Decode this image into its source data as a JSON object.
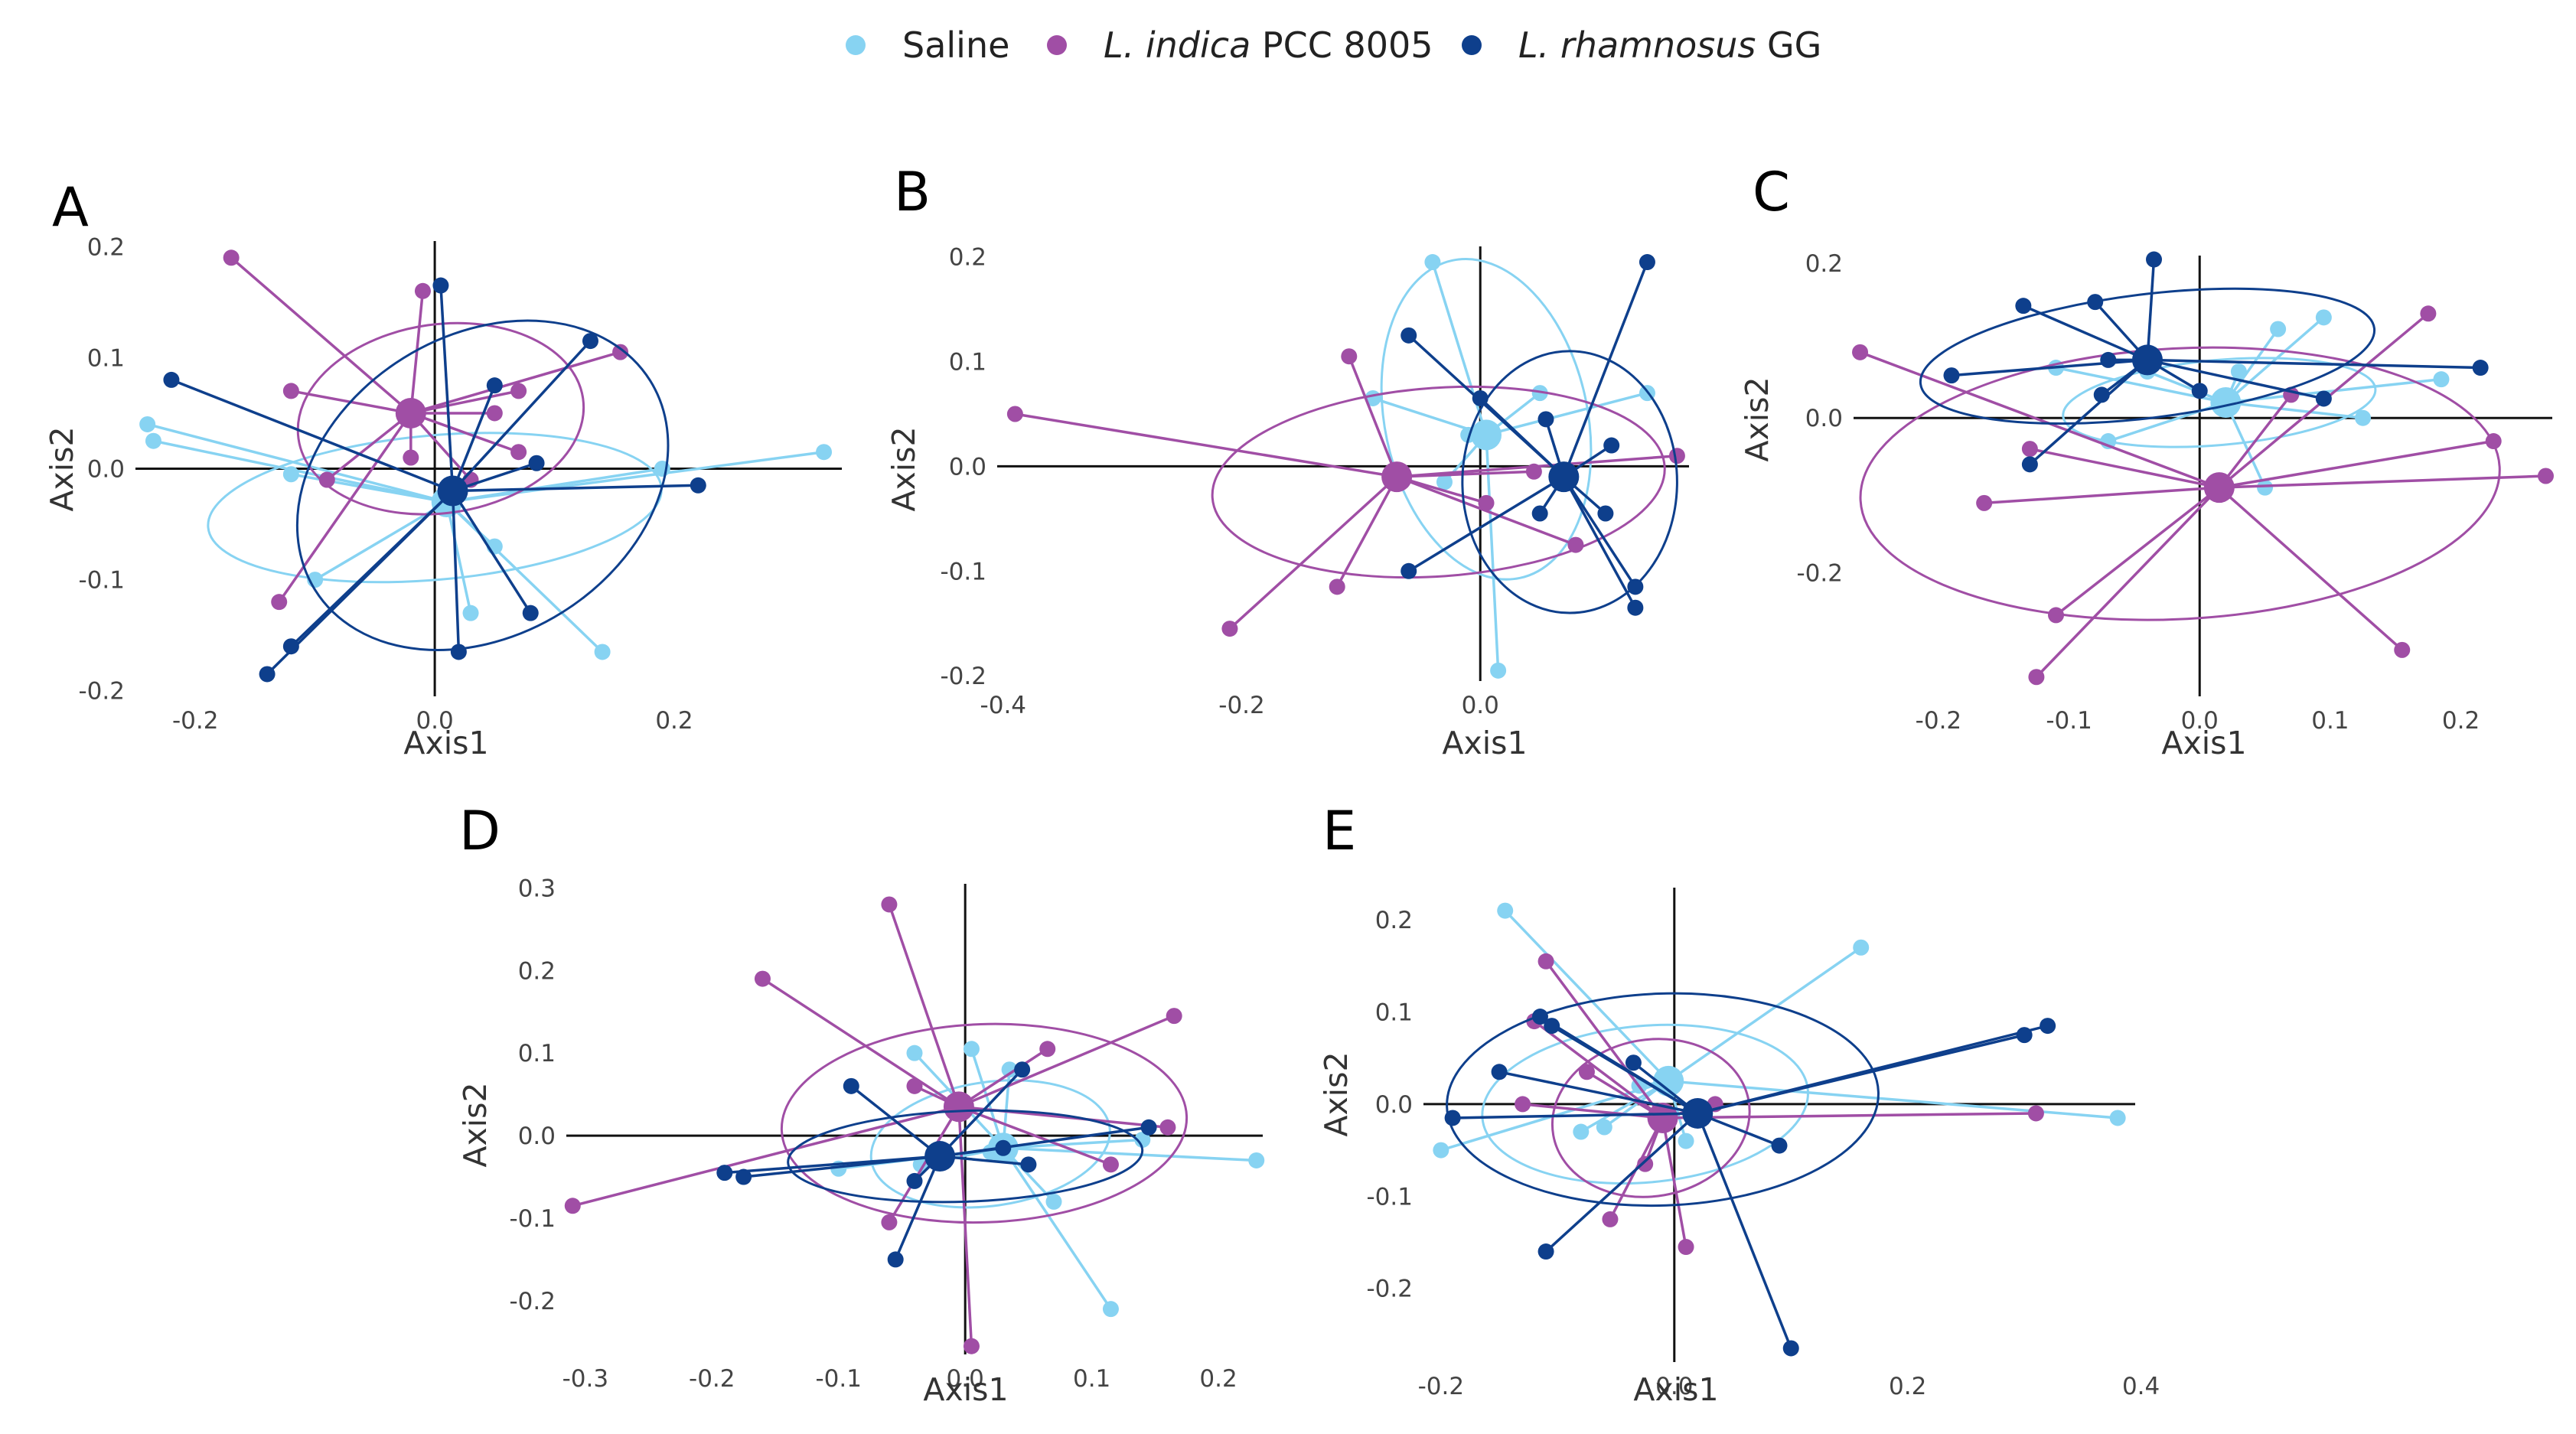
{
  "legend": {
    "items": [
      {
        "name": "Saline",
        "italic": "",
        "plain": "Saline",
        "color": "#87d3f2"
      },
      {
        "name": "L. indica PCC 8005",
        "italic": "L. indica",
        "plain": " PCC 8005",
        "color": "#a04ea5"
      },
      {
        "name": "L. rhamnosus GG",
        "italic": "L. rhamnosus",
        "plain": " GG",
        "color": "#0e3f8c"
      }
    ]
  },
  "chart_data": [
    {
      "panel": "A",
      "type": "scatter",
      "xlabel": "Axis1",
      "ylabel": "Axis2",
      "xlim": [
        -0.25,
        0.34
      ],
      "ylim": [
        -0.205,
        0.205
      ],
      "xticks": [
        "-0.2",
        "0.0",
        "0.2"
      ],
      "xtick_values": [
        -0.2,
        0.0,
        0.2
      ],
      "yticks": [
        "0.2",
        "0.1",
        "0.0",
        "-0.1",
        "-0.2"
      ],
      "ytick_values": [
        0.2,
        0.1,
        0.0,
        -0.1,
        -0.2
      ],
      "groups": [
        {
          "name": "Saline",
          "color": "#87d3f2",
          "centroid": [
            0.01,
            -0.03
          ],
          "ellipse": {
            "cx": 0.0,
            "cy": -0.035,
            "rx": 0.19,
            "ry": 0.065,
            "angle": -5
          },
          "points": [
            [
              -0.24,
              0.04
            ],
            [
              -0.235,
              0.025
            ],
            [
              -0.1,
              -0.1
            ],
            [
              -0.12,
              -0.005
            ],
            [
              0.05,
              -0.07
            ],
            [
              0.03,
              -0.13
            ],
            [
              0.14,
              -0.165
            ],
            [
              0.19,
              0.0
            ],
            [
              0.325,
              0.015
            ],
            [
              0.01,
              -0.025
            ]
          ]
        },
        {
          "name": "L. indica PCC 8005",
          "color": "#a04ea5",
          "centroid": [
            -0.02,
            0.05
          ],
          "ellipse": {
            "cx": 0.005,
            "cy": 0.045,
            "rx": 0.12,
            "ry": 0.085,
            "angle": -8
          },
          "points": [
            [
              -0.17,
              0.19
            ],
            [
              -0.12,
              0.07
            ],
            [
              -0.09,
              -0.01
            ],
            [
              -0.13,
              -0.12
            ],
            [
              -0.01,
              0.16
            ],
            [
              -0.02,
              0.01
            ],
            [
              0.05,
              0.05
            ],
            [
              0.07,
              0.07
            ],
            [
              0.155,
              0.105
            ],
            [
              0.07,
              0.015
            ],
            [
              0.03,
              -0.01
            ]
          ]
        },
        {
          "name": "L. rhamnosus GG",
          "color": "#0e3f8c",
          "centroid": [
            0.015,
            -0.02
          ],
          "ellipse": {
            "cx": 0.04,
            "cy": -0.015,
            "rx": 0.165,
            "ry": 0.135,
            "angle": -32
          },
          "points": [
            [
              -0.22,
              0.08
            ],
            [
              0.005,
              0.165
            ],
            [
              0.13,
              0.115
            ],
            [
              0.22,
              -0.015
            ],
            [
              0.085,
              0.005
            ],
            [
              0.08,
              -0.13
            ],
            [
              0.02,
              -0.165
            ],
            [
              -0.12,
              -0.16
            ],
            [
              -0.14,
              -0.185
            ],
            [
              0.05,
              0.075
            ]
          ]
        }
      ]
    },
    {
      "panel": "B",
      "type": "scatter",
      "xlabel": "Axis1",
      "ylabel": "Axis2",
      "xlim": [
        -0.405,
        0.175
      ],
      "ylim": [
        -0.205,
        0.21
      ],
      "xticks": [
        "-0.4",
        "-0.2",
        "0.0"
      ],
      "xtick_values": [
        -0.4,
        -0.2,
        0.0
      ],
      "yticks": [
        "0.2",
        "0.1",
        "0.0",
        "-0.1",
        "-0.2"
      ],
      "ytick_values": [
        0.2,
        0.1,
        0.0,
        -0.1,
        -0.2
      ],
      "groups": [
        {
          "name": "Saline",
          "color": "#87d3f2",
          "centroid": [
            0.005,
            0.03
          ],
          "ellipse": {
            "cx": 0.005,
            "cy": 0.045,
            "rx": 0.085,
            "ry": 0.155,
            "angle": -12
          },
          "points": [
            [
              -0.04,
              0.195
            ],
            [
              -0.09,
              0.065
            ],
            [
              -0.03,
              -0.015
            ],
            [
              0.015,
              -0.195
            ],
            [
              0.05,
              0.07
            ],
            [
              0.14,
              0.07
            ],
            [
              -0.01,
              0.03
            ]
          ]
        },
        {
          "name": "L. indica PCC 8005",
          "color": "#a04ea5",
          "centroid": [
            -0.07,
            -0.01
          ],
          "ellipse": {
            "cx": -0.035,
            "cy": -0.015,
            "rx": 0.19,
            "ry": 0.09,
            "angle": -4
          },
          "points": [
            [
              -0.39,
              0.05
            ],
            [
              -0.21,
              -0.155
            ],
            [
              -0.12,
              -0.115
            ],
            [
              -0.11,
              0.105
            ],
            [
              0.005,
              -0.035
            ],
            [
              0.045,
              -0.005
            ],
            [
              0.08,
              -0.075
            ],
            [
              0.165,
              0.01
            ]
          ]
        },
        {
          "name": "L. rhamnosus GG",
          "color": "#0e3f8c",
          "centroid": [
            0.07,
            -0.01
          ],
          "ellipse": {
            "cx": 0.075,
            "cy": -0.015,
            "rx": 0.09,
            "ry": 0.125,
            "angle": 0
          },
          "points": [
            [
              -0.06,
              0.125
            ],
            [
              -0.06,
              -0.1
            ],
            [
              0.055,
              0.045
            ],
            [
              0.05,
              -0.045
            ],
            [
              0.11,
              0.02
            ],
            [
              0.14,
              0.195
            ],
            [
              0.13,
              -0.115
            ],
            [
              0.13,
              -0.135
            ],
            [
              0.105,
              -0.045
            ],
            [
              0.0,
              0.065
            ]
          ]
        }
      ]
    },
    {
      "panel": "C",
      "type": "scatter",
      "xlabel": "Axis1",
      "ylabel": "Axis2",
      "xlim": [
        -0.265,
        0.27
      ],
      "ylim": [
        -0.36,
        0.21
      ],
      "xticks": [
        "-0.2",
        "-0.1",
        "0.0",
        "0.1",
        "0.2"
      ],
      "xtick_values": [
        -0.2,
        -0.1,
        0.0,
        0.1,
        0.2
      ],
      "yticks": [
        "0.2",
        "0.0",
        "-0.2"
      ],
      "ytick_values": [
        0.2,
        0.0,
        -0.2
      ],
      "groups": [
        {
          "name": "Saline",
          "color": "#87d3f2",
          "centroid": [
            0.02,
            0.02
          ],
          "ellipse": {
            "cx": 0.015,
            "cy": 0.02,
            "rx": 0.12,
            "ry": 0.055,
            "angle": -5
          },
          "points": [
            [
              -0.11,
              0.065
            ],
            [
              -0.07,
              -0.03
            ],
            [
              0.06,
              0.115
            ],
            [
              0.095,
              0.13
            ],
            [
              0.125,
              0.0
            ],
            [
              0.185,
              0.05
            ],
            [
              0.05,
              -0.09
            ],
            [
              -0.04,
              0.06
            ],
            [
              0.03,
              0.06
            ]
          ]
        },
        {
          "name": "L. indica PCC 8005",
          "color": "#a04ea5",
          "centroid": [
            0.015,
            -0.09
          ],
          "ellipse": {
            "cx": -0.015,
            "cy": -0.085,
            "rx": 0.245,
            "ry": 0.175,
            "angle": -3
          },
          "points": [
            [
              -0.26,
              0.085
            ],
            [
              -0.165,
              -0.11
            ],
            [
              -0.13,
              -0.04
            ],
            [
              -0.11,
              -0.255
            ],
            [
              -0.125,
              -0.335
            ],
            [
              0.175,
              0.135
            ],
            [
              0.225,
              -0.03
            ],
            [
              0.265,
              -0.075
            ],
            [
              0.155,
              -0.3
            ],
            [
              0.07,
              0.03
            ]
          ]
        },
        {
          "name": "L. rhamnosus GG",
          "color": "#0e3f8c",
          "centroid": [
            -0.04,
            0.075
          ],
          "ellipse": {
            "cx": -0.04,
            "cy": 0.08,
            "rx": 0.175,
            "ry": 0.08,
            "angle": -7
          },
          "points": [
            [
              -0.19,
              0.055
            ],
            [
              -0.135,
              0.145
            ],
            [
              -0.08,
              0.15
            ],
            [
              -0.07,
              0.075
            ],
            [
              -0.075,
              0.03
            ],
            [
              -0.035,
              0.205
            ],
            [
              -0.13,
              -0.06
            ],
            [
              0.095,
              0.025
            ],
            [
              0.215,
              0.065
            ],
            [
              0.0,
              0.035
            ]
          ]
        }
      ]
    },
    {
      "panel": "D",
      "type": "scatter",
      "xlabel": "Axis1",
      "ylabel": "Axis2",
      "xlim": [
        -0.315,
        0.235
      ],
      "ylim": [
        -0.265,
        0.305
      ],
      "xticks": [
        "-0.3",
        "-0.2",
        "-0.1",
        "0.0",
        "0.1",
        "0.2"
      ],
      "xtick_values": [
        -0.3,
        -0.2,
        -0.1,
        0.0,
        0.1,
        0.2
      ],
      "yticks": [
        "0.3",
        "0.2",
        "0.1",
        "0.0",
        "-0.1",
        "-0.2"
      ],
      "ytick_values": [
        0.3,
        0.2,
        0.1,
        0.0,
        -0.1,
        -0.2
      ],
      "groups": [
        {
          "name": "Saline",
          "color": "#87d3f2",
          "centroid": [
            0.03,
            -0.015
          ],
          "ellipse": {
            "cx": 0.02,
            "cy": -0.01,
            "rx": 0.095,
            "ry": 0.075,
            "angle": -8
          },
          "points": [
            [
              -0.04,
              0.1
            ],
            [
              0.005,
              0.105
            ],
            [
              0.035,
              0.08
            ],
            [
              -0.035,
              -0.035
            ],
            [
              -0.1,
              -0.04
            ],
            [
              0.07,
              -0.08
            ],
            [
              0.115,
              -0.21
            ],
            [
              0.23,
              -0.03
            ],
            [
              0.14,
              -0.005
            ],
            [
              0.02,
              -0.02
            ]
          ]
        },
        {
          "name": "L. indica PCC 8005",
          "color": "#a04ea5",
          "centroid": [
            -0.005,
            0.035
          ],
          "ellipse": {
            "cx": 0.015,
            "cy": 0.015,
            "rx": 0.16,
            "ry": 0.12,
            "angle": -2
          },
          "points": [
            [
              -0.31,
              -0.085
            ],
            [
              -0.16,
              0.19
            ],
            [
              -0.06,
              0.28
            ],
            [
              0.005,
              -0.255
            ],
            [
              0.065,
              0.105
            ],
            [
              0.165,
              0.145
            ],
            [
              0.16,
              0.01
            ],
            [
              0.115,
              -0.035
            ],
            [
              -0.06,
              -0.105
            ],
            [
              -0.04,
              0.06
            ]
          ]
        },
        {
          "name": "L. rhamnosus GG",
          "color": "#0e3f8c",
          "centroid": [
            -0.02,
            -0.025
          ],
          "ellipse": {
            "cx": 0.0,
            "cy": -0.025,
            "rx": 0.14,
            "ry": 0.055,
            "angle": -2
          },
          "points": [
            [
              -0.19,
              -0.045
            ],
            [
              -0.175,
              -0.05
            ],
            [
              -0.09,
              0.06
            ],
            [
              -0.04,
              -0.055
            ],
            [
              -0.055,
              -0.15
            ],
            [
              0.045,
              0.08
            ],
            [
              0.05,
              -0.035
            ],
            [
              0.145,
              0.01
            ],
            [
              0.03,
              -0.015
            ]
          ]
        }
      ]
    },
    {
      "panel": "E",
      "type": "scatter",
      "xlabel": "Axis1",
      "ylabel": "Axis2",
      "xlim": [
        -0.215,
        0.395
      ],
      "ylim": [
        -0.28,
        0.235
      ],
      "xticks": [
        "-0.2",
        "0.0",
        "0.2",
        "0.4"
      ],
      "xtick_values": [
        -0.2,
        0.0,
        0.2,
        0.4
      ],
      "yticks": [
        "0.2",
        "0.1",
        "0.0",
        "-0.1",
        "-0.2"
      ],
      "ytick_values": [
        0.2,
        0.1,
        0.0,
        -0.1,
        -0.2
      ],
      "groups": [
        {
          "name": "Saline",
          "color": "#87d3f2",
          "centroid": [
            -0.005,
            0.025
          ],
          "ellipse": {
            "cx": -0.025,
            "cy": 0.0,
            "rx": 0.14,
            "ry": 0.085,
            "angle": -5
          },
          "points": [
            [
              -0.145,
              0.21
            ],
            [
              -0.2,
              -0.05
            ],
            [
              -0.08,
              -0.03
            ],
            [
              -0.06,
              -0.025
            ],
            [
              -0.03,
              0.02
            ],
            [
              0.16,
              0.17
            ],
            [
              0.38,
              -0.015
            ],
            [
              0.01,
              -0.04
            ]
          ]
        },
        {
          "name": "L. indica PCC 8005",
          "color": "#a04ea5",
          "centroid": [
            -0.01,
            -0.015
          ],
          "ellipse": {
            "cx": -0.02,
            "cy": -0.015,
            "rx": 0.085,
            "ry": 0.085,
            "angle": -10
          },
          "points": [
            [
              -0.11,
              0.155
            ],
            [
              -0.12,
              0.09
            ],
            [
              -0.075,
              0.035
            ],
            [
              -0.055,
              -0.125
            ],
            [
              -0.025,
              -0.065
            ],
            [
              0.01,
              -0.155
            ],
            [
              0.31,
              -0.01
            ],
            [
              -0.13,
              0.0
            ],
            [
              0.035,
              0.0
            ]
          ]
        },
        {
          "name": "L. rhamnosus GG",
          "color": "#0e3f8c",
          "centroid": [
            0.02,
            -0.01
          ],
          "ellipse": {
            "cx": -0.01,
            "cy": 0.005,
            "rx": 0.185,
            "ry": 0.115,
            "angle": -2
          },
          "points": [
            [
              -0.19,
              -0.015
            ],
            [
              -0.15,
              0.035
            ],
            [
              -0.115,
              0.095
            ],
            [
              -0.105,
              0.085
            ],
            [
              -0.11,
              -0.16
            ],
            [
              0.09,
              -0.045
            ],
            [
              0.1,
              -0.265
            ],
            [
              0.3,
              0.075
            ],
            [
              0.32,
              0.085
            ],
            [
              -0.035,
              0.045
            ]
          ]
        }
      ]
    }
  ]
}
